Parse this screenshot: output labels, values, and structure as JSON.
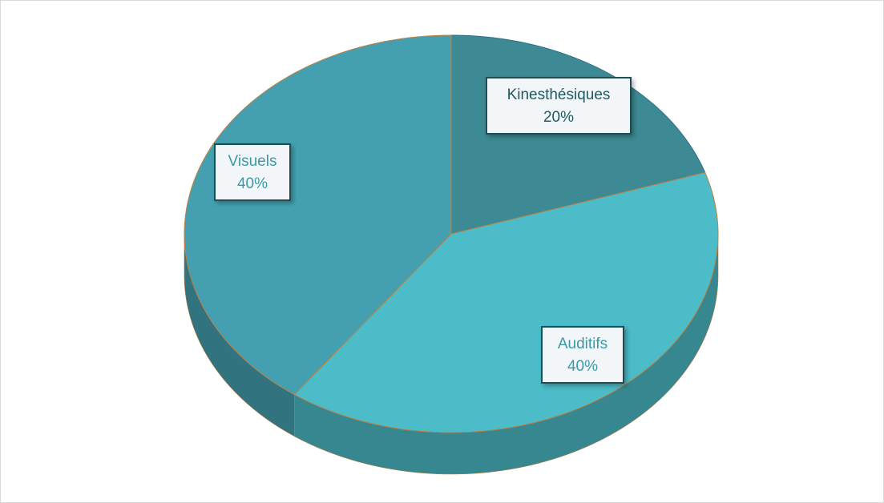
{
  "chart_data": {
    "type": "pie",
    "categories": [
      "Kinesthésiques",
      "Auditifs",
      "Visuels"
    ],
    "values": [
      20,
      40,
      40
    ],
    "value_labels": [
      "20%",
      "40%",
      "40%"
    ],
    "colors": [
      "#3d8a94",
      "#4bbcc8",
      "#44a0b0"
    ],
    "start_angle": -90,
    "direction": "clockwise"
  }
}
